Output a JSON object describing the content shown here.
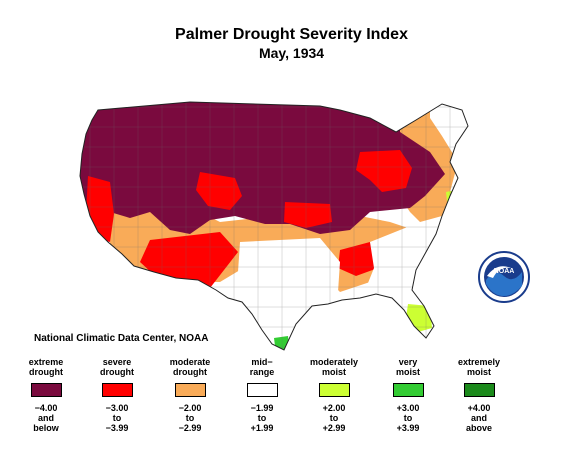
{
  "title": "Palmer Drought Severity Index",
  "subtitle": "May, 1934",
  "credit": "National Climatic Data Center, NOAA",
  "logo_text": "NOAA",
  "legend": [
    {
      "label_lines": [
        "extreme",
        "drought"
      ],
      "range_lines": [
        "−4.00",
        "and",
        "below"
      ],
      "color": "#7a0a3e"
    },
    {
      "label_lines": [
        "severe",
        "drought"
      ],
      "range_lines": [
        "−3.00",
        "to",
        "−3.99"
      ],
      "color": "#ff0000"
    },
    {
      "label_lines": [
        "moderate",
        "drought"
      ],
      "range_lines": [
        "−2.00",
        "to",
        "−2.99"
      ],
      "color": "#f9ab58"
    },
    {
      "label_lines": [
        "mid−",
        "range"
      ],
      "range_lines": [
        "−1.99",
        "to",
        "+1.99"
      ],
      "color": "#ffffff"
    },
    {
      "label_lines": [
        "moderately",
        "moist"
      ],
      "range_lines": [
        "+2.00",
        "to",
        "+2.99"
      ],
      "color": "#ccff33"
    },
    {
      "label_lines": [
        "very",
        "moist"
      ],
      "range_lines": [
        "+3.00",
        "to",
        "+3.99"
      ],
      "color": "#33cc33"
    },
    {
      "label_lines": [
        "extremely",
        "moist"
      ],
      "range_lines": [
        "+4.00",
        "and",
        "above"
      ],
      "color": "#1b8a1b"
    }
  ],
  "regions": [
    {
      "name": "west-extreme",
      "category": "extreme drought"
    },
    {
      "name": "northern-plains-extreme",
      "category": "extreme drought"
    },
    {
      "name": "upper-midwest-extreme",
      "category": "extreme drought"
    },
    {
      "name": "california-severe",
      "category": "severe drought"
    },
    {
      "name": "southwest-severe",
      "category": "severe drought"
    },
    {
      "name": "great-lakes-severe",
      "category": "severe drought"
    },
    {
      "name": "southwest-moderate",
      "category": "moderate drought"
    },
    {
      "name": "south-moderate",
      "category": "moderate drought"
    },
    {
      "name": "northeast-moderate",
      "category": "moderate drought"
    },
    {
      "name": "texas-midrange",
      "category": "mid-range"
    },
    {
      "name": "southeast-midrange",
      "category": "mid-range"
    },
    {
      "name": "south-texas-moist",
      "category": "moderately moist"
    },
    {
      "name": "florida-moist",
      "category": "moderately moist"
    },
    {
      "name": "delmarva-moist",
      "category": "moderately moist"
    }
  ]
}
